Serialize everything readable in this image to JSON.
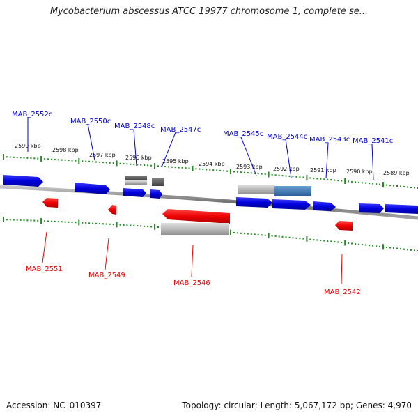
{
  "title": "Mycobacterium abscessus ATCC 19977 chromosome 1, complete se...",
  "footer": {
    "accession": "Accession: NC_010397",
    "summary": "Topology: circular; Length: 5,067,172 bp; Genes: 4,970"
  },
  "colors": {
    "plus_strand": "#0000cc",
    "minus_strand": "#ee0000",
    "ruler": "#228b22",
    "backbone": "#808080",
    "pseudo_gray": "#b8b8b8",
    "highlight_blue": "#3d7bb5"
  },
  "kbp_ticks": [
    "2599 kbp",
    "2598 kbp",
    "2597 kbp",
    "2596 kbp",
    "2595 kbp",
    "2594 kbp",
    "2593 kbp",
    "2592 kbp",
    "2591 kbp",
    "2590 kbp",
    "2589 kbp"
  ],
  "genes_top": [
    "MAB_2552c",
    "MAB_2550c",
    "MAB_2548c",
    "MAB_2547c",
    "MAB_2545c",
    "MAB_2544c",
    "MAB_2543c",
    "MAB_2541c"
  ],
  "genes_bottom": [
    "MAB_2551",
    "MAB_2549",
    "MAB_2546",
    "MAB_2542"
  ]
}
